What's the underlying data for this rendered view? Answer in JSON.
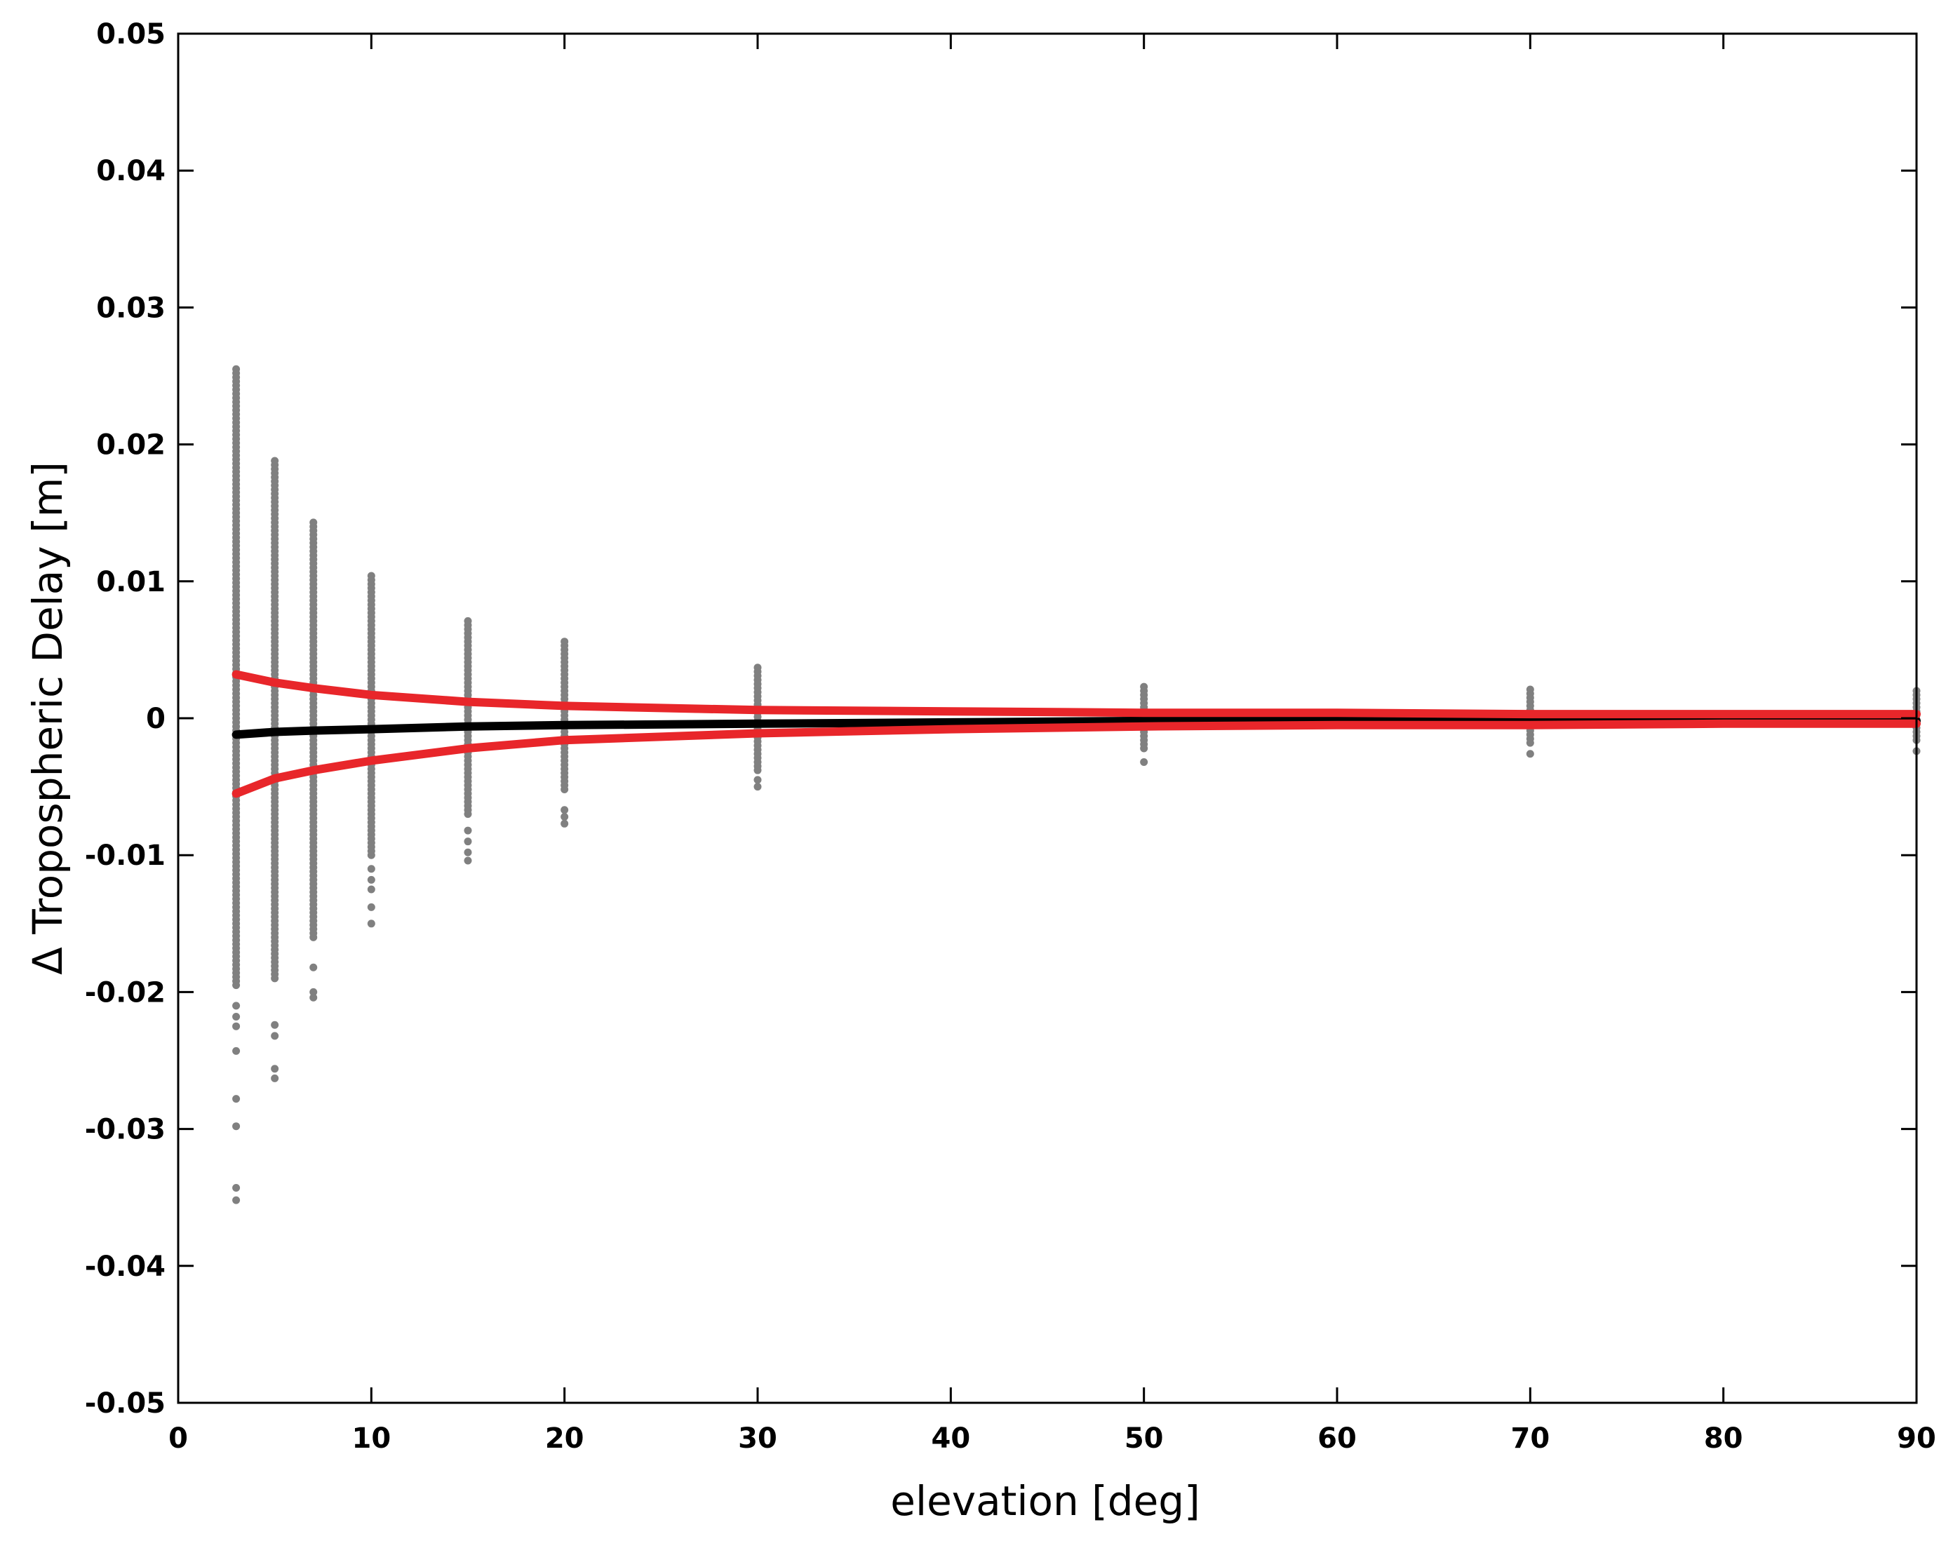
{
  "chart_data": {
    "type": "scatter",
    "title": "",
    "xlabel": "elevation [deg]",
    "ylabel": "Δ Tropospheric Delay [m]",
    "xlim": [
      0,
      90
    ],
    "ylim": [
      -0.05,
      0.05
    ],
    "x_ticks": [
      0,
      10,
      20,
      30,
      40,
      50,
      60,
      70,
      80,
      90
    ],
    "x_tick_labels": [
      "0",
      "10",
      "20",
      "30",
      "40",
      "50",
      "60",
      "70",
      "80",
      "90"
    ],
    "y_ticks": [
      0.05,
      0.04,
      0.03,
      0.02,
      0.01,
      0,
      -0.01,
      -0.02,
      -0.03,
      -0.04,
      -0.05
    ],
    "y_tick_labels": [
      "0.05",
      "0.04",
      "0.03",
      "0.02",
      "0.01",
      "0",
      "-0.01",
      "-0.02",
      "-0.03",
      "-0.04",
      "-0.05"
    ],
    "grid": false,
    "scatter_series": {
      "color": "#808080",
      "groups": [
        {
          "x": 3,
          "min": -0.0195,
          "max": 0.0257,
          "outliers": [
            -0.021,
            -0.0218,
            -0.0225,
            -0.0243,
            -0.0278,
            -0.0298,
            -0.0343,
            -0.0352
          ]
        },
        {
          "x": 5,
          "min": -0.019,
          "max": 0.019,
          "outliers": [
            -0.0224,
            -0.0232,
            -0.0256,
            -0.0263
          ]
        },
        {
          "x": 7,
          "min": -0.016,
          "max": 0.0143,
          "outliers": [
            -0.0182,
            -0.02,
            -0.0204
          ]
        },
        {
          "x": 10,
          "min": -0.01,
          "max": 0.0105,
          "outliers": [
            -0.011,
            -0.0118,
            -0.0125,
            -0.0138,
            -0.015
          ]
        },
        {
          "x": 15,
          "min": -0.007,
          "max": 0.0073,
          "outliers": [
            -0.0082,
            -0.009,
            -0.0098,
            -0.0104
          ]
        },
        {
          "x": 20,
          "min": -0.0052,
          "max": 0.0056,
          "outliers": [
            -0.0067,
            -0.0072,
            -0.0077
          ]
        },
        {
          "x": 30,
          "min": -0.0038,
          "max": 0.0038,
          "outliers": [
            -0.0045,
            -0.005
          ]
        },
        {
          "x": 50,
          "min": -0.0022,
          "max": 0.0025,
          "outliers": [
            -0.0032
          ]
        },
        {
          "x": 70,
          "min": -0.0018,
          "max": 0.0021,
          "outliers": [
            -0.0026
          ]
        },
        {
          "x": 90,
          "min": -0.0016,
          "max": 0.002,
          "outliers": [
            -0.0024
          ]
        }
      ]
    },
    "line_series": [
      {
        "color": "#000000",
        "x": [
          3,
          5,
          7,
          10,
          15,
          20,
          30,
          40,
          50,
          60,
          70,
          80,
          90
        ],
        "y": [
          -0.0012,
          -0.001,
          -0.0009,
          -0.0008,
          -0.0006,
          -0.0005,
          -0.0004,
          -0.0003,
          -0.0002,
          -0.0002,
          -0.0002,
          -0.0002,
          -0.0002
        ]
      },
      {
        "color": "#e8262a",
        "x": [
          3,
          5,
          7,
          10,
          15,
          20,
          30,
          40,
          50,
          60,
          70,
          80,
          90
        ],
        "y": [
          0.0032,
          0.0026,
          0.0022,
          0.0017,
          0.0012,
          0.0009,
          0.0006,
          0.0005,
          0.0004,
          0.0004,
          0.0003,
          0.0003,
          0.0003
        ]
      },
      {
        "color": "#e8262a",
        "x": [
          3,
          5,
          7,
          10,
          15,
          20,
          30,
          40,
          50,
          60,
          70,
          80,
          90
        ],
        "y": [
          -0.0055,
          -0.0044,
          -0.0038,
          -0.0031,
          -0.0022,
          -0.0016,
          -0.0011,
          -0.0008,
          -0.0006,
          -0.0005,
          -0.0005,
          -0.0004,
          -0.0004
        ]
      }
    ]
  }
}
